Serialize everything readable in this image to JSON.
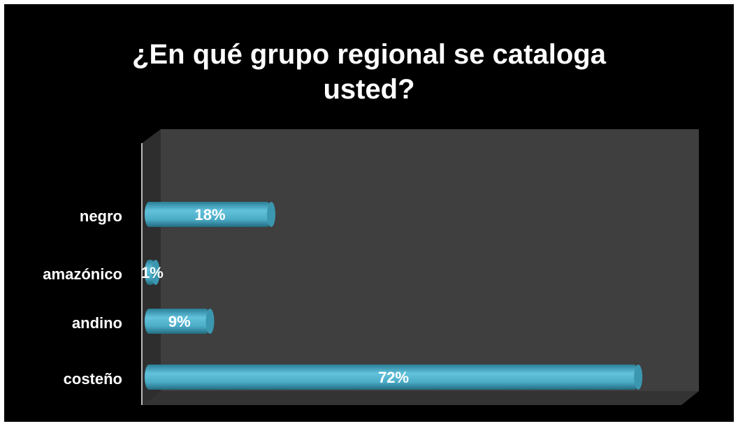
{
  "chart_data": {
    "type": "bar",
    "orientation": "horizontal",
    "title": "¿En qué grupo regional se cataloga usted?",
    "categories": [
      "negro",
      "amazónico",
      "andino",
      "costeño"
    ],
    "values": [
      18,
      1,
      9,
      72
    ],
    "value_labels": [
      "18%",
      "1%",
      "9%",
      "72%"
    ],
    "color": "#4bacc6",
    "xlim": [
      0,
      80
    ]
  }
}
